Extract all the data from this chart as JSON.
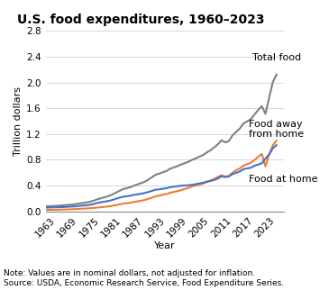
{
  "title": "U.S. food expenditures, 1960–2023",
  "ylabel": "Trillion dollars",
  "xlabel": "Year",
  "note": "Note: Values are in nominal dollars, not adjusted for inflation.",
  "source": "Source: USDA, Economic Research Service, Food Expenditure Series.",
  "ylim": [
    0,
    2.8
  ],
  "yticks": [
    0.0,
    0.4,
    0.8,
    1.2,
    1.6,
    2.0,
    2.4,
    2.8
  ],
  "xtick_years": [
    1963,
    1969,
    1975,
    1981,
    1987,
    1993,
    1999,
    2005,
    2011,
    2017,
    2023
  ],
  "years": [
    1960,
    1961,
    1962,
    1963,
    1964,
    1965,
    1966,
    1967,
    1968,
    1969,
    1970,
    1971,
    1972,
    1973,
    1974,
    1975,
    1976,
    1977,
    1978,
    1979,
    1980,
    1981,
    1982,
    1983,
    1984,
    1985,
    1986,
    1987,
    1988,
    1989,
    1990,
    1991,
    1992,
    1993,
    1994,
    1995,
    1996,
    1997,
    1998,
    1999,
    2000,
    2001,
    2002,
    2003,
    2004,
    2005,
    2006,
    2007,
    2008,
    2009,
    2010,
    2011,
    2012,
    2013,
    2014,
    2015,
    2016,
    2017,
    2018,
    2019,
    2020,
    2021,
    2022,
    2023
  ],
  "food_at_home": [
    0.057,
    0.058,
    0.06,
    0.062,
    0.064,
    0.066,
    0.07,
    0.072,
    0.077,
    0.082,
    0.088,
    0.093,
    0.099,
    0.111,
    0.127,
    0.138,
    0.148,
    0.158,
    0.172,
    0.19,
    0.208,
    0.224,
    0.233,
    0.24,
    0.253,
    0.263,
    0.272,
    0.283,
    0.298,
    0.316,
    0.335,
    0.341,
    0.35,
    0.358,
    0.374,
    0.381,
    0.389,
    0.396,
    0.4,
    0.405,
    0.411,
    0.421,
    0.433,
    0.443,
    0.461,
    0.471,
    0.487,
    0.508,
    0.543,
    0.531,
    0.54,
    0.577,
    0.596,
    0.619,
    0.654,
    0.665,
    0.676,
    0.706,
    0.725,
    0.745,
    0.817,
    0.879,
    0.977,
    1.028
  ],
  "food_away": [
    0.02,
    0.021,
    0.022,
    0.023,
    0.025,
    0.027,
    0.029,
    0.031,
    0.034,
    0.037,
    0.04,
    0.043,
    0.047,
    0.051,
    0.056,
    0.062,
    0.068,
    0.075,
    0.083,
    0.093,
    0.105,
    0.117,
    0.125,
    0.132,
    0.143,
    0.153,
    0.163,
    0.175,
    0.192,
    0.211,
    0.232,
    0.243,
    0.256,
    0.268,
    0.287,
    0.3,
    0.313,
    0.329,
    0.347,
    0.364,
    0.388,
    0.401,
    0.415,
    0.431,
    0.453,
    0.477,
    0.503,
    0.532,
    0.559,
    0.539,
    0.549,
    0.6,
    0.637,
    0.666,
    0.709,
    0.73,
    0.754,
    0.796,
    0.846,
    0.888,
    0.696,
    0.885,
    1.026,
    1.095
  ],
  "total_food": [
    0.077,
    0.079,
    0.082,
    0.085,
    0.089,
    0.093,
    0.099,
    0.103,
    0.111,
    0.119,
    0.128,
    0.136,
    0.146,
    0.162,
    0.183,
    0.2,
    0.216,
    0.233,
    0.255,
    0.283,
    0.313,
    0.341,
    0.358,
    0.372,
    0.396,
    0.416,
    0.435,
    0.458,
    0.49,
    0.527,
    0.567,
    0.584,
    0.606,
    0.626,
    0.661,
    0.681,
    0.702,
    0.725,
    0.747,
    0.769,
    0.799,
    0.822,
    0.848,
    0.874,
    0.914,
    0.948,
    0.99,
    1.04,
    1.102,
    1.07,
    1.089,
    1.177,
    1.233,
    1.285,
    1.363,
    1.395,
    1.43,
    1.502,
    1.571,
    1.633,
    1.513,
    1.764,
    2.003,
    2.123
  ],
  "color_at_home": "#4472c4",
  "color_away": "#ed7d31",
  "color_total": "#808080",
  "linewidth": 1.5,
  "label_total": "Total food",
  "label_away": "Food away\nfrom home",
  "label_home": "Food at home",
  "title_fontsize": 10,
  "axis_label_fontsize": 8,
  "tick_fontsize": 7.5,
  "note_fontsize": 6.5,
  "annotation_fontsize": 8
}
